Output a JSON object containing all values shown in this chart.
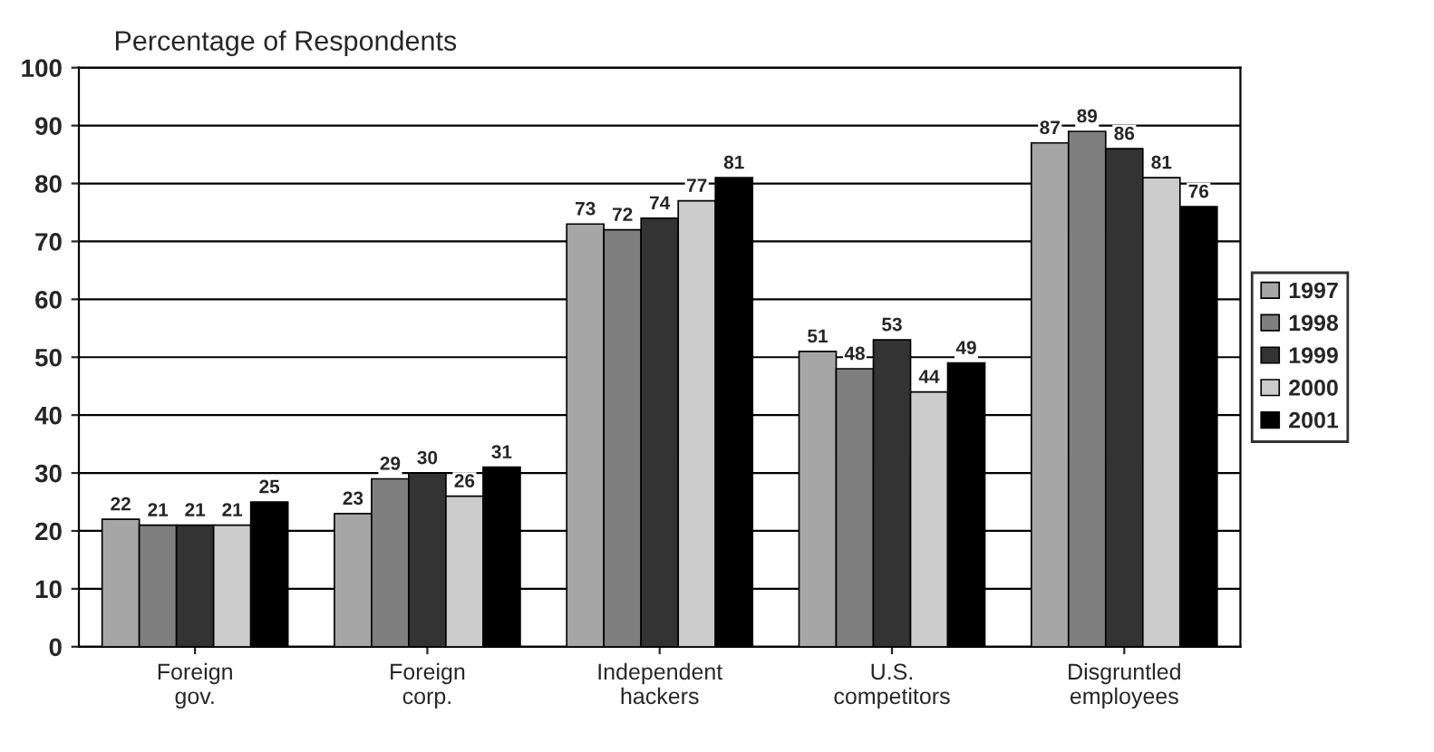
{
  "chart_data": {
    "type": "bar",
    "ylabel": "Percentage of Respondents",
    "categories": [
      "Foreign gov.",
      "Foreign corp.",
      "Independent hackers",
      "U.S. competitors",
      "Disgruntled employees"
    ],
    "series": [
      {
        "name": "1997",
        "color": "#a6a6a6",
        "values": [
          22,
          23,
          73,
          51,
          87
        ]
      },
      {
        "name": "1998",
        "color": "#7f7f7f",
        "values": [
          21,
          29,
          72,
          48,
          89
        ]
      },
      {
        "name": "1999",
        "color": "#333333",
        "values": [
          21,
          30,
          74,
          53,
          86
        ]
      },
      {
        "name": "2000",
        "color": "#cccccc",
        "values": [
          21,
          26,
          77,
          44,
          81
        ]
      },
      {
        "name": "2001",
        "color": "#000000",
        "values": [
          25,
          31,
          81,
          49,
          76
        ]
      }
    ],
    "ylim": [
      0,
      100
    ],
    "yticks": [
      0,
      10,
      20,
      30,
      40,
      50,
      60,
      70,
      80,
      90,
      100
    ],
    "grid": "y",
    "legend": "right",
    "data_labels": true
  }
}
